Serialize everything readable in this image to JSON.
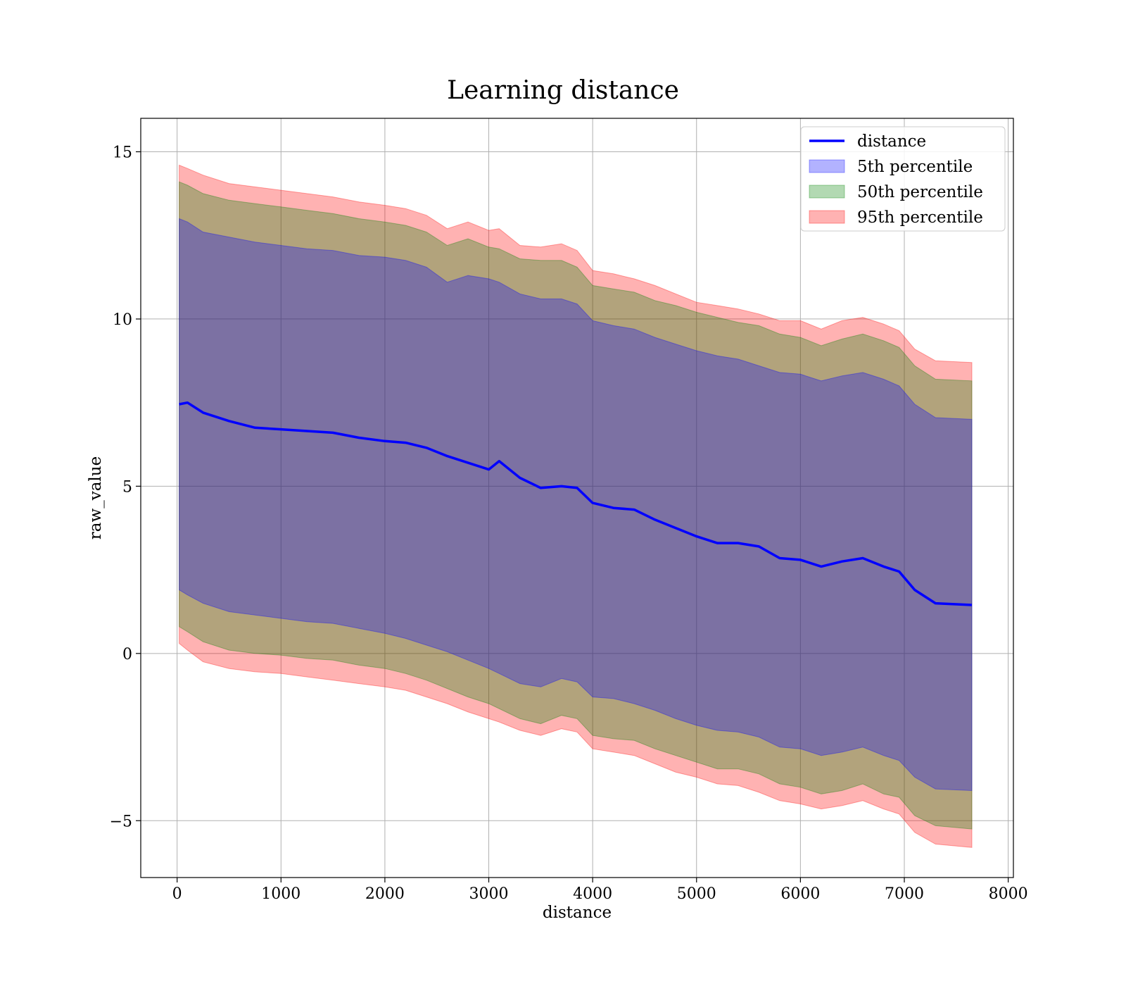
{
  "chart_data": {
    "type": "area",
    "title": "Learning distance",
    "xlabel": "distance",
    "ylabel": "raw_value",
    "xlim": [
      -350,
      8050
    ],
    "ylim": [
      -6.7,
      16.0
    ],
    "x_ticks": [
      0,
      1000,
      2000,
      3000,
      4000,
      5000,
      6000,
      7000,
      8000
    ],
    "x_tick_labels": [
      "0",
      "1000",
      "2000",
      "3000",
      "4000",
      "5000",
      "6000",
      "7000",
      "8000"
    ],
    "y_ticks": [
      -5,
      0,
      5,
      10,
      15
    ],
    "y_tick_labels": [
      "−5",
      "0",
      "5",
      "10",
      "15"
    ],
    "grid": true,
    "legend": "top-right",
    "x": [
      20,
      100,
      250,
      500,
      750,
      1000,
      1250,
      1500,
      1750,
      2000,
      2200,
      2400,
      2600,
      2800,
      3000,
      3100,
      3300,
      3500,
      3700,
      3850,
      4000,
      4200,
      4400,
      4600,
      4800,
      5000,
      5200,
      5400,
      5600,
      5800,
      6000,
      6200,
      6400,
      6600,
      6800,
      6950,
      7100,
      7300,
      7650
    ],
    "series": [
      {
        "name": "distance",
        "kind": "line",
        "color": "#0000ff",
        "values": [
          7.45,
          7.5,
          7.2,
          6.95,
          6.75,
          6.7,
          6.65,
          6.6,
          6.45,
          6.35,
          6.3,
          6.15,
          5.9,
          5.7,
          5.5,
          5.75,
          5.25,
          4.95,
          5.0,
          4.95,
          4.5,
          4.35,
          4.3,
          4.0,
          3.75,
          3.5,
          3.3,
          3.3,
          3.2,
          2.85,
          2.8,
          2.6,
          2.75,
          2.85,
          2.6,
          2.45,
          1.9,
          1.5,
          1.45
        ]
      },
      {
        "name": "5th percentile",
        "kind": "band",
        "color": "#0000ff",
        "upper": [
          13.0,
          12.9,
          12.6,
          12.45,
          12.3,
          12.2,
          12.1,
          12.05,
          11.9,
          11.85,
          11.75,
          11.55,
          11.1,
          11.3,
          11.2,
          11.1,
          10.75,
          10.6,
          10.6,
          10.45,
          9.95,
          9.8,
          9.7,
          9.45,
          9.25,
          9.05,
          8.9,
          8.8,
          8.6,
          8.4,
          8.35,
          8.15,
          8.3,
          8.4,
          8.2,
          8.0,
          7.45,
          7.05,
          7.0
        ],
        "lower": [
          1.9,
          1.75,
          1.5,
          1.25,
          1.15,
          1.05,
          0.95,
          0.9,
          0.75,
          0.6,
          0.45,
          0.25,
          0.05,
          -0.2,
          -0.45,
          -0.6,
          -0.9,
          -1.0,
          -0.75,
          -0.85,
          -1.3,
          -1.35,
          -1.5,
          -1.7,
          -1.95,
          -2.15,
          -2.3,
          -2.35,
          -2.5,
          -2.8,
          -2.85,
          -3.05,
          -2.95,
          -2.8,
          -3.05,
          -3.2,
          -3.7,
          -4.05,
          -4.1
        ]
      },
      {
        "name": "50th percentile",
        "kind": "band",
        "color": "#008000",
        "upper": [
          14.1,
          14.0,
          13.75,
          13.55,
          13.45,
          13.35,
          13.25,
          13.15,
          13.0,
          12.9,
          12.8,
          12.6,
          12.2,
          12.4,
          12.15,
          12.1,
          11.8,
          11.75,
          11.75,
          11.55,
          11.0,
          10.9,
          10.8,
          10.55,
          10.4,
          10.2,
          10.05,
          9.9,
          9.8,
          9.55,
          9.45,
          9.2,
          9.4,
          9.55,
          9.35,
          9.15,
          8.6,
          8.2,
          8.15
        ],
        "lower": [
          0.8,
          0.65,
          0.35,
          0.1,
          0.0,
          -0.05,
          -0.15,
          -0.2,
          -0.35,
          -0.45,
          -0.6,
          -0.8,
          -1.05,
          -1.3,
          -1.5,
          -1.65,
          -1.95,
          -2.1,
          -1.85,
          -1.95,
          -2.45,
          -2.55,
          -2.6,
          -2.85,
          -3.05,
          -3.25,
          -3.45,
          -3.45,
          -3.6,
          -3.9,
          -4.0,
          -4.2,
          -4.1,
          -3.9,
          -4.2,
          -4.3,
          -4.85,
          -5.15,
          -5.25
        ]
      },
      {
        "name": "95th percentile",
        "kind": "band",
        "color": "#ff0000",
        "upper": [
          14.6,
          14.5,
          14.3,
          14.05,
          13.95,
          13.85,
          13.75,
          13.65,
          13.5,
          13.4,
          13.3,
          13.1,
          12.7,
          12.9,
          12.65,
          12.7,
          12.2,
          12.15,
          12.25,
          12.05,
          11.45,
          11.35,
          11.2,
          11.0,
          10.75,
          10.5,
          10.4,
          10.3,
          10.15,
          9.95,
          9.95,
          9.7,
          9.95,
          10.05,
          9.85,
          9.65,
          9.1,
          8.75,
          8.7
        ],
        "lower": [
          0.3,
          0.1,
          -0.25,
          -0.45,
          -0.55,
          -0.6,
          -0.7,
          -0.8,
          -0.9,
          -1.0,
          -1.1,
          -1.3,
          -1.5,
          -1.75,
          -1.95,
          -2.05,
          -2.3,
          -2.45,
          -2.25,
          -2.35,
          -2.85,
          -2.95,
          -3.05,
          -3.3,
          -3.55,
          -3.7,
          -3.9,
          -3.95,
          -4.15,
          -4.4,
          -4.5,
          -4.65,
          -4.55,
          -4.4,
          -4.65,
          -4.8,
          -5.35,
          -5.7,
          -5.8
        ]
      }
    ],
    "legend_labels": [
      "distance",
      "5th percentile",
      "50th percentile",
      "95th percentile"
    ]
  }
}
